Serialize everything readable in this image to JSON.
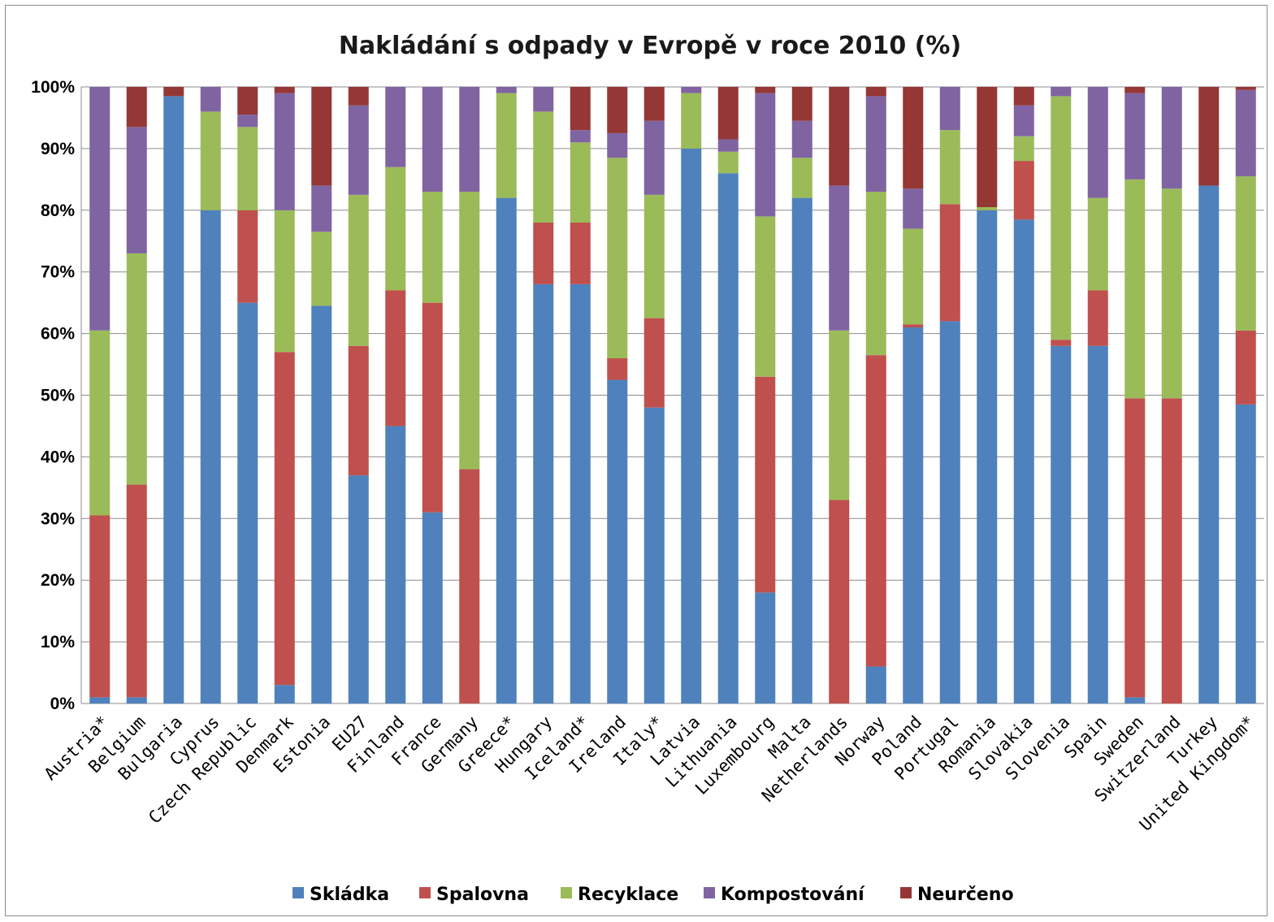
{
  "chart_data": {
    "type": "bar",
    "stacked": true,
    "title": "Nakládání s odpady v Evropě v roce 2010 (%)",
    "xlabel": "",
    "ylabel": "",
    "ylim": [
      0,
      100
    ],
    "y_ticks": [
      "0%",
      "10%",
      "20%",
      "30%",
      "40%",
      "50%",
      "60%",
      "70%",
      "80%",
      "90%",
      "100%"
    ],
    "grid": true,
    "legend_position": "bottom",
    "categories": [
      "Austria*",
      "Belgium",
      "Bulgaria",
      "Cyprus",
      "Czech Republic",
      "Denmark",
      "Estonia",
      "EU27",
      "Finland",
      "France",
      "Germany",
      "Greece*",
      "Hungary",
      "Iceland*",
      "Ireland",
      "Italy*",
      "Latvia",
      "Lithuania",
      "Luxembourg",
      "Malta",
      "Netherlands",
      "Norway",
      "Poland",
      "Portugal",
      "Romania",
      "Slovakia",
      "Slovenia",
      "Spain",
      "Sweden",
      "Switzerland",
      "Turkey",
      "United Kingdom*"
    ],
    "series": [
      {
        "name": "Skládka",
        "color": "#4f81bd",
        "values": [
          1,
          1,
          98.5,
          80,
          65,
          3,
          64.5,
          37,
          45,
          31,
          0,
          82,
          68,
          68,
          52.5,
          48,
          90,
          86,
          18,
          82,
          0,
          6,
          61,
          62,
          80,
          78.5,
          58,
          58,
          1,
          0,
          84,
          48.5
        ]
      },
      {
        "name": "Spalovna",
        "color": "#c0504d",
        "values": [
          29.5,
          34.5,
          0,
          0,
          15,
          54,
          0,
          21,
          22,
          34,
          38,
          0,
          10,
          10,
          3.5,
          14.5,
          0,
          0,
          35,
          0,
          33,
          50.5,
          0.5,
          19,
          0,
          9.5,
          1,
          9,
          48.5,
          49.5,
          0,
          12
        ]
      },
      {
        "name": "Recyklace",
        "color": "#9bbb59",
        "values": [
          30,
          37.5,
          0,
          16,
          13.5,
          23,
          12,
          24.5,
          20,
          18,
          45,
          17,
          18,
          13,
          32.5,
          20,
          9,
          3.5,
          26,
          6.5,
          27.5,
          26.5,
          15.5,
          12,
          0.5,
          4,
          39.5,
          15,
          35.5,
          34,
          0,
          25
        ]
      },
      {
        "name": "Kompostování",
        "color": "#8064a2",
        "values": [
          39.5,
          20.5,
          0,
          4,
          2,
          19,
          7.5,
          14.5,
          13,
          17,
          17,
          1,
          4,
          2,
          4,
          12,
          1,
          2,
          20,
          6,
          23.5,
          15.5,
          6.5,
          7,
          0,
          5,
          1.5,
          18,
          14,
          16.5,
          0,
          14
        ]
      },
      {
        "name": "Neurčeno",
        "color": "#953735",
        "values": [
          0,
          6.5,
          1.5,
          0,
          4.5,
          1,
          16,
          3,
          0,
          0,
          0,
          0,
          0,
          7,
          7.5,
          5.5,
          0,
          8.5,
          1,
          5.5,
          16,
          1.5,
          16.5,
          0,
          19.5,
          3,
          0,
          0,
          1,
          0,
          16,
          0.5
        ]
      }
    ]
  }
}
